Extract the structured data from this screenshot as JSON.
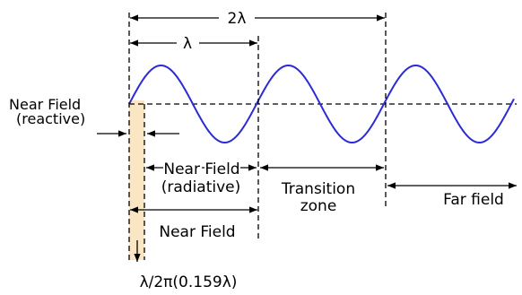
{
  "labels": {
    "two_lambda": "2λ",
    "lambda": "λ",
    "near_field_reactive_line1": "Near Field",
    "near_field_reactive_line2": "(reactive)",
    "near_field_radiative_line1": "Near Field",
    "near_field_radiative_line2": "(radiative)",
    "transition_line1": "Transition",
    "transition_line2": "zone",
    "far_field": "Far field",
    "near_field": "Near Field",
    "boundary": "λ/2π(0.159λ)"
  },
  "colors": {
    "wave": "#2b2bd6",
    "reactive_zone_fill": "#fbe6c4",
    "lines": "#000000"
  }
}
